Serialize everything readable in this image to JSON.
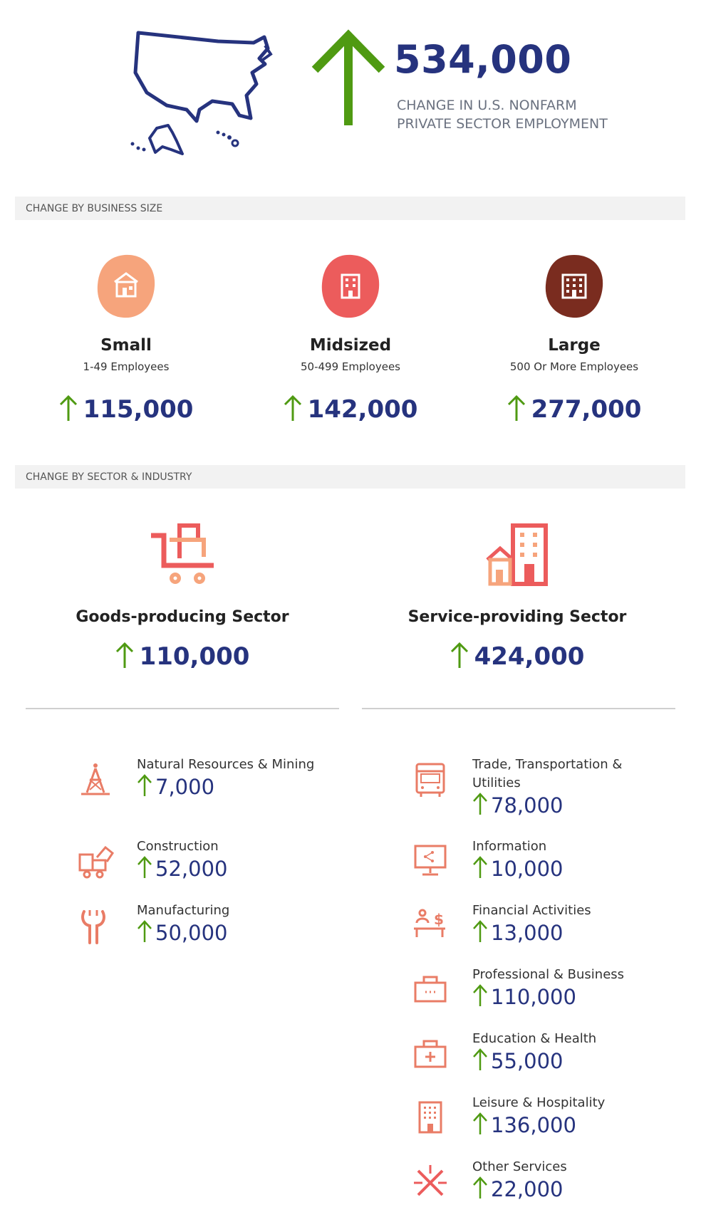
{
  "header": {
    "value": "534,000",
    "label": "CHANGE IN U.S. NONFARM PRIVATE SECTOR EMPLOYMENT"
  },
  "colors": {
    "navy": "#26337e",
    "green": "#4f9a12",
    "gray_bar": "#f2f2f2",
    "peach": "#f6a47c",
    "coral": "#ec5c5c",
    "brown": "#7a2c1f",
    "icon_salmon": "#e97c66"
  },
  "size_section": {
    "title": "CHANGE BY BUSINESS SIZE",
    "items": [
      {
        "name": "Small",
        "sub": "1-49 Employees",
        "value": "115,000",
        "icon": "house-icon",
        "color": "#f6a47c"
      },
      {
        "name": "Midsized",
        "sub": "50-499 Employees",
        "value": "142,000",
        "icon": "building-icon",
        "color": "#ec5c5c"
      },
      {
        "name": "Large",
        "sub": "500 Or More Employees",
        "value": "277,000",
        "icon": "office-building-icon",
        "color": "#7a2c1f"
      }
    ]
  },
  "sector_section": {
    "title": "CHANGE BY SECTOR & INDUSTRY",
    "goods": {
      "name": "Goods-producing Sector",
      "value": "110,000",
      "icon": "cart-icon"
    },
    "service": {
      "name": "Service-providing Sector",
      "value": "424,000",
      "icon": "city-icon"
    }
  },
  "goods_industries": [
    {
      "label": "Natural Resources & Mining",
      "value": "7,000",
      "icon": "oil-rig-icon"
    },
    {
      "label": "Construction",
      "value": "52,000",
      "icon": "construction-vehicle-icon"
    },
    {
      "label": "Manufacturing",
      "value": "50,000",
      "icon": "wrench-icon"
    }
  ],
  "service_industries": [
    {
      "label": "Trade, Transportation & Utilities",
      "value": "78,000",
      "icon": "bus-icon"
    },
    {
      "label": "Information",
      "value": "10,000",
      "icon": "monitor-icon"
    },
    {
      "label": "Financial Activities",
      "value": "13,000",
      "icon": "banker-icon"
    },
    {
      "label": "Professional & Business",
      "value": "110,000",
      "icon": "briefcase-icon"
    },
    {
      "label": "Education & Health",
      "value": "55,000",
      "icon": "medical-kit-icon"
    },
    {
      "label": "Leisure & Hospitality",
      "value": "136,000",
      "icon": "hotel-icon"
    },
    {
      "label": "Other Services",
      "value": "22,000",
      "icon": "tools-icon"
    }
  ]
}
